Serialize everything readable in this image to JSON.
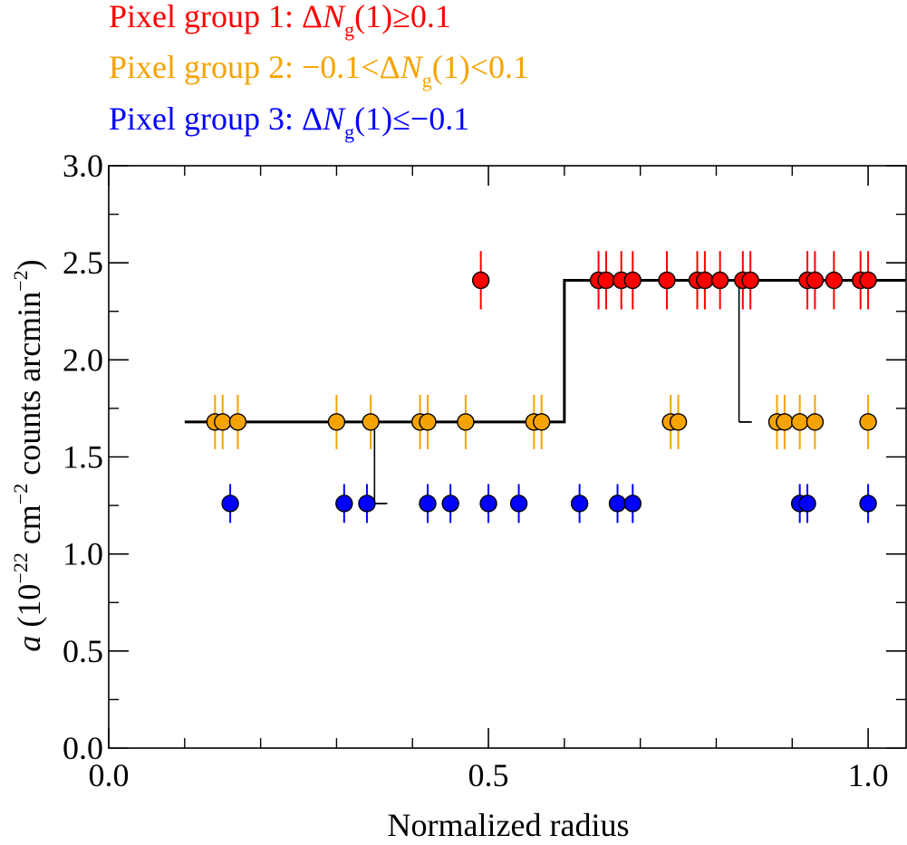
{
  "colors": {
    "group1": "#ff0000",
    "group2": "#f5a300",
    "group3": "#0000ff",
    "axis": "#000000",
    "model": "#000000"
  },
  "legend": [
    {
      "prefix": "Pixel group 1: ΔN",
      "sub": "g",
      "suffix": "(1)≥0.1",
      "color_key": "group1"
    },
    {
      "prefix": "Pixel group 2: −0.1<ΔN",
      "sub": "g",
      "suffix": "(1)<0.1",
      "color_key": "group2"
    },
    {
      "prefix": "Pixel group 3: ΔN",
      "sub": "g",
      "suffix": "(1)≤−0.1",
      "color_key": "group3"
    }
  ],
  "chart_data": {
    "type": "scatter",
    "xlabel": "Normalized radius",
    "ylabel": {
      "italic": "a",
      "base": " (10",
      "sup1": "−22",
      "mid": " cm",
      "sup2": "−2",
      "mid2": " counts arcmin",
      "sup3": "−2",
      "end": ")"
    },
    "xlim": [
      0.0,
      1.05
    ],
    "ylim": [
      0.0,
      3.0
    ],
    "x_ticks": [
      0.0,
      0.5,
      1.0
    ],
    "x_tick_labels": [
      "0.0",
      "0.5",
      "1.0"
    ],
    "x_minor_step": 0.1,
    "y_ticks": [
      0.0,
      0.5,
      1.0,
      1.5,
      2.0,
      2.5,
      3.0
    ],
    "y_tick_labels": [
      "0.0",
      "0.5",
      "1.0",
      "1.5",
      "2.0",
      "2.5",
      "3.0"
    ],
    "y_minor_step": 0.25,
    "series": [
      {
        "name": "Pixel group 1",
        "color_key": "group1",
        "y": 2.41,
        "err": 0.15,
        "x": [
          0.49,
          0.645,
          0.655,
          0.675,
          0.69,
          0.735,
          0.775,
          0.785,
          0.805,
          0.835,
          0.845,
          0.92,
          0.93,
          0.955,
          0.99,
          1.0
        ]
      },
      {
        "name": "Pixel group 2",
        "color_key": "group2",
        "y": 1.68,
        "err": 0.14,
        "x": [
          0.14,
          0.15,
          0.17,
          0.3,
          0.345,
          0.41,
          0.42,
          0.47,
          0.56,
          0.57,
          0.74,
          0.75,
          0.88,
          0.89,
          0.91,
          0.93,
          1.0
        ]
      },
      {
        "name": "Pixel group 3",
        "color_key": "group3",
        "y": 1.26,
        "err": 0.1,
        "x": [
          0.16,
          0.31,
          0.34,
          0.42,
          0.45,
          0.5,
          0.54,
          0.62,
          0.67,
          0.69,
          0.91,
          0.92,
          1.0
        ]
      }
    ],
    "model_line": {
      "points": [
        [
          0.1,
          1.68
        ],
        [
          0.6,
          1.68
        ],
        [
          0.6,
          2.41
        ],
        [
          1.05,
          2.41
        ]
      ],
      "drops": [
        {
          "x": 0.35,
          "from": 1.68,
          "to": 1.26,
          "cap": 0.03
        },
        {
          "x": 0.83,
          "from": 2.41,
          "to": 1.68,
          "cap": 0.03
        }
      ]
    }
  }
}
